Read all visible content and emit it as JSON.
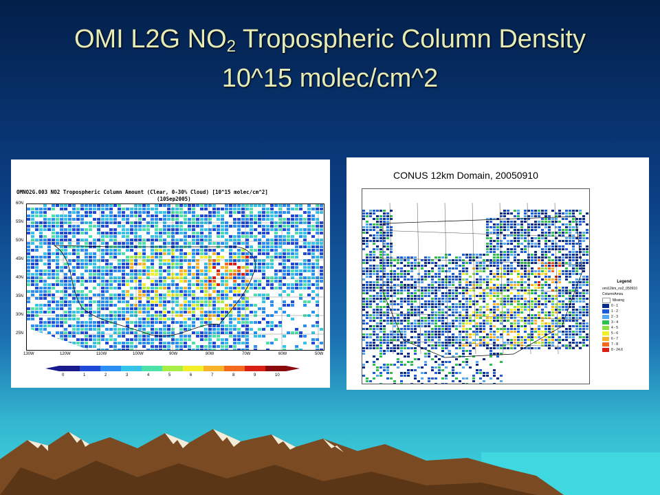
{
  "slide": {
    "title_prefix": "OMI L2G NO",
    "title_sub": "2",
    "title_suffix": " Tropospheric Column Density",
    "title_line2": "10^15 molec/cm^2"
  },
  "left_map": {
    "header": "OMNO2G.003 NO2 Tropospheric Column Amount (Clear, 0-30% Cloud) [10^15 molec/cm^2]",
    "date": "(10Sep2005)",
    "lat_labels": [
      "60N",
      "55N",
      "50N",
      "45N",
      "40N",
      "35N",
      "30N",
      "25N"
    ],
    "lon_labels": [
      "130W",
      "120W",
      "110W",
      "100W",
      "90W",
      "80W",
      "70W",
      "60W",
      "50W"
    ],
    "colorbar_labels": [
      "0",
      "1",
      "2",
      "3",
      "4",
      "5",
      "6",
      "7",
      "8",
      "9",
      "10"
    ],
    "colorbar_colors": [
      "#1a1a8f",
      "#1f49d6",
      "#2b8ef2",
      "#35c4e8",
      "#4fe0a8",
      "#a8ee48",
      "#f2ee2a",
      "#f8b22a",
      "#f36a1e",
      "#d82014",
      "#8a0c0c"
    ]
  },
  "right_map": {
    "title": "CONUS 12km Domain, 20050910",
    "legend": {
      "title": "Legend",
      "layer": "omi12km_no2_050910",
      "field": "ColumnAmou",
      "items": [
        {
          "label": "Missing",
          "color": "#ffffff"
        },
        {
          "label": "0 - 1",
          "color": "#0a2a8a"
        },
        {
          "label": "1 - 2",
          "color": "#1d5cd6"
        },
        {
          "label": "2 - 3",
          "color": "#53a8f0"
        },
        {
          "label": "3 - 4",
          "color": "#2fbf4f"
        },
        {
          "label": "4 - 5",
          "color": "#8fe048"
        },
        {
          "label": "5 - 6",
          "color": "#f2ee2a"
        },
        {
          "label": "6 - 7",
          "color": "#f8b22a"
        },
        {
          "label": "7 - 8",
          "color": "#f36a1e"
        },
        {
          "label": "8 - 24.6",
          "color": "#d82014"
        }
      ]
    }
  },
  "colors": {
    "title_text": "#e7ecb6",
    "mountain_brown": "#7a4b22",
    "sea": "#3fd8e0"
  }
}
